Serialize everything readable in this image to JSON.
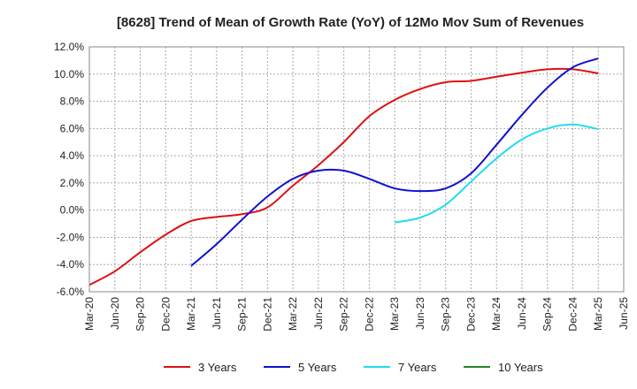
{
  "chart_data": {
    "type": "line",
    "title": "[8628]  Trend of Mean of Growth Rate (YoY) of 12Mo Mov Sum of Revenues",
    "xlabel": "",
    "ylabel": "",
    "ylim": [
      -6.0,
      12.0
    ],
    "y_ticks": [
      "12.0%",
      "10.0%",
      "8.0%",
      "6.0%",
      "4.0%",
      "2.0%",
      "0.0%",
      "-2.0%",
      "-4.0%",
      "-6.0%"
    ],
    "x_ticks": [
      "Mar-20",
      "Jun-20",
      "Sep-20",
      "Dec-20",
      "Mar-21",
      "Jun-21",
      "Sep-21",
      "Dec-21",
      "Mar-22",
      "Jun-22",
      "Sep-22",
      "Dec-22",
      "Mar-23",
      "Jun-23",
      "Sep-23",
      "Dec-23",
      "Mar-24",
      "Jun-24",
      "Sep-24",
      "Dec-24",
      "Mar-25",
      "Jun-25"
    ],
    "grid": true,
    "legend_position": "bottom",
    "series": [
      {
        "name": "3 Years",
        "color": "#dd1111",
        "points": [
          [
            0,
            -5.5
          ],
          [
            1,
            -4.5
          ],
          [
            2,
            -3.1
          ],
          [
            3,
            -1.8
          ],
          [
            4,
            -0.8
          ],
          [
            5,
            -0.5
          ],
          [
            6,
            -0.3
          ],
          [
            7,
            0.2
          ],
          [
            8,
            1.8
          ],
          [
            9,
            3.3
          ],
          [
            10,
            5.0
          ],
          [
            11,
            6.9
          ],
          [
            12,
            8.1
          ],
          [
            13,
            8.9
          ],
          [
            14,
            9.4
          ],
          [
            15,
            9.5
          ],
          [
            16,
            9.8
          ],
          [
            17,
            10.1
          ],
          [
            18,
            10.35
          ],
          [
            19,
            10.35
          ],
          [
            20,
            10.05
          ]
        ]
      },
      {
        "name": "5 Years",
        "color": "#1111cc",
        "points": [
          [
            4,
            -4.1
          ],
          [
            5,
            -2.5
          ],
          [
            6,
            -0.7
          ],
          [
            7,
            1.0
          ],
          [
            8,
            2.3
          ],
          [
            9,
            2.9
          ],
          [
            10,
            2.9
          ],
          [
            11,
            2.3
          ],
          [
            12,
            1.6
          ],
          [
            13,
            1.4
          ],
          [
            14,
            1.6
          ],
          [
            15,
            2.7
          ],
          [
            16,
            4.8
          ],
          [
            17,
            7.0
          ],
          [
            18,
            9.0
          ],
          [
            19,
            10.5
          ],
          [
            20,
            11.15
          ]
        ]
      },
      {
        "name": "7 Years",
        "color": "#22ddee",
        "points": [
          [
            12,
            -0.9
          ],
          [
            13,
            -0.55
          ],
          [
            14,
            0.4
          ],
          [
            15,
            2.1
          ],
          [
            16,
            3.8
          ],
          [
            17,
            5.2
          ],
          [
            18,
            6.0
          ],
          [
            19,
            6.3
          ],
          [
            20,
            5.95
          ]
        ]
      },
      {
        "name": "10 Years",
        "color": "#228822",
        "points": []
      }
    ]
  }
}
